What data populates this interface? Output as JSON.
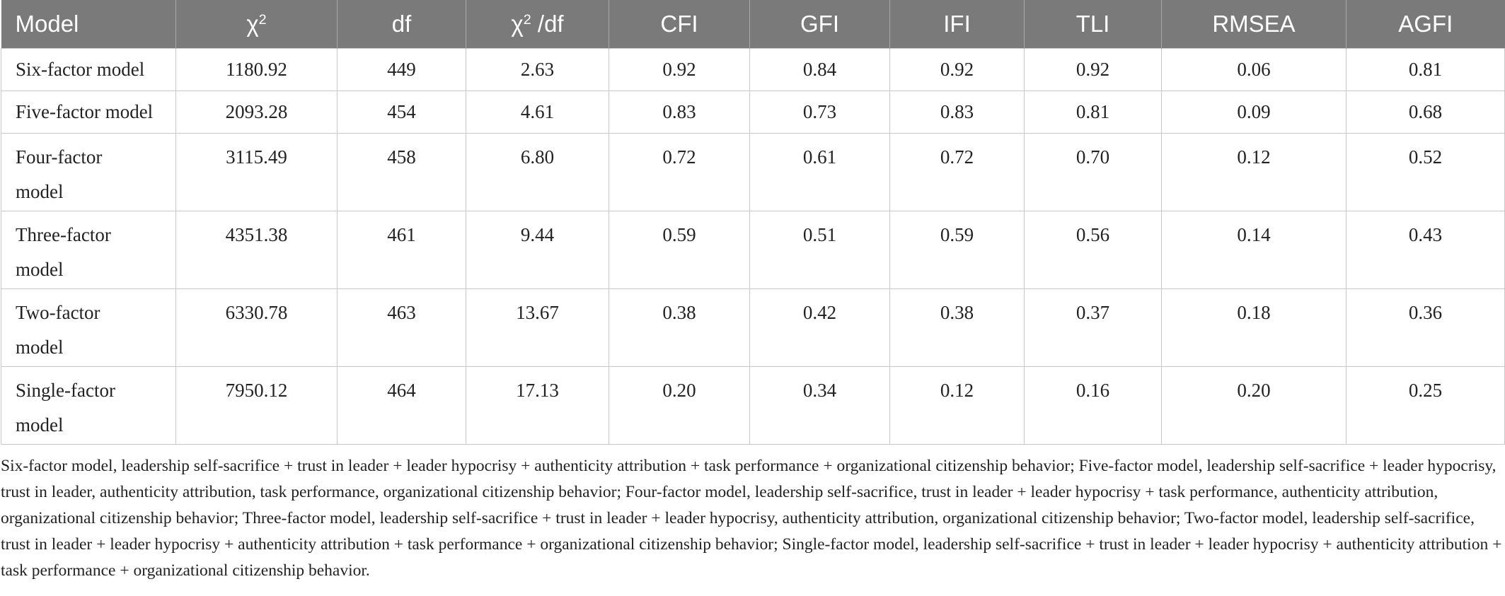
{
  "table": {
    "headers": [
      {
        "key": "model",
        "text": "Model"
      },
      {
        "key": "chi2",
        "text": "χ",
        "sup": "2"
      },
      {
        "key": "df",
        "text": "df"
      },
      {
        "key": "chi2df",
        "text": "χ",
        "sup": "2",
        "after": " /df"
      },
      {
        "key": "cfi",
        "text": "CFI"
      },
      {
        "key": "gfi",
        "text": "GFI"
      },
      {
        "key": "ifi",
        "text": "IFI"
      },
      {
        "key": "tli",
        "text": "TLI"
      },
      {
        "key": "rmsea",
        "text": "RMSEA"
      },
      {
        "key": "agfi",
        "text": "AGFI"
      }
    ],
    "rows": [
      {
        "model": "Six-factor model",
        "chi2": "1180.92",
        "df": "449",
        "chi2df": "2.63",
        "cfi": "0.92",
        "gfi": "0.84",
        "ifi": "0.92",
        "tli": "0.92",
        "rmsea": "0.06",
        "agfi": "0.81"
      },
      {
        "model": "Five-factor model",
        "chi2": "2093.28",
        "df": "454",
        "chi2df": "4.61",
        "cfi": "0.83",
        "gfi": "0.73",
        "ifi": "0.83",
        "tli": "0.81",
        "rmsea": "0.09",
        "agfi": "0.68"
      },
      {
        "model": "Four-factor model",
        "chi2": "3115.49",
        "df": "458",
        "chi2df": "6.80",
        "cfi": "0.72",
        "gfi": "0.61",
        "ifi": "0.72",
        "tli": "0.70",
        "rmsea": "0.12",
        "agfi": "0.52"
      },
      {
        "model": "Three-factor model",
        "chi2": "4351.38",
        "df": "461",
        "chi2df": "9.44",
        "cfi": "0.59",
        "gfi": "0.51",
        "ifi": "0.59",
        "tli": "0.56",
        "rmsea": "0.14",
        "agfi": "0.43"
      },
      {
        "model": "Two-factor model",
        "chi2": "6330.78",
        "df": "463",
        "chi2df": "13.67",
        "cfi": "0.38",
        "gfi": "0.42",
        "ifi": "0.38",
        "tli": "0.37",
        "rmsea": "0.18",
        "agfi": "0.36"
      },
      {
        "model": "Single-factor model",
        "chi2": "7950.12",
        "df": "464",
        "chi2df": "17.13",
        "cfi": "0.20",
        "gfi": "0.34",
        "ifi": "0.12",
        "tli": "0.16",
        "rmsea": "0.20",
        "agfi": "0.25"
      }
    ]
  },
  "footnote": "Six-factor model, leadership self-sacrifice + trust in leader + leader hypocrisy + authenticity attribution + task performance + organizational citizenship behavior; Five-factor model, leadership self-sacrifice + leader hypocrisy, trust in leader, authenticity attribution, task performance, organizational citizenship behavior; Four-factor model, leadership self-sacrifice, trust in leader + leader hypocrisy + task performance, authenticity attribution, organizational citizenship behavior; Three-factor model, leadership self-sacrifice + trust in leader + leader hypocrisy, authenticity attribution, organizational citizenship behavior; Two-factor model, leadership self-sacrifice, trust in leader + leader hypocrisy + authenticity attribution + task performance + organizational citizenship behavior; Single-factor model, leadership self-sacrifice + trust in leader + leader hypocrisy + authenticity attribution + task performance + organizational citizenship behavior.",
  "colors": {
    "header_bg": "#7a7a7a",
    "header_text": "#ffffff",
    "border": "#c8c8c8",
    "body_text": "#222222"
  }
}
